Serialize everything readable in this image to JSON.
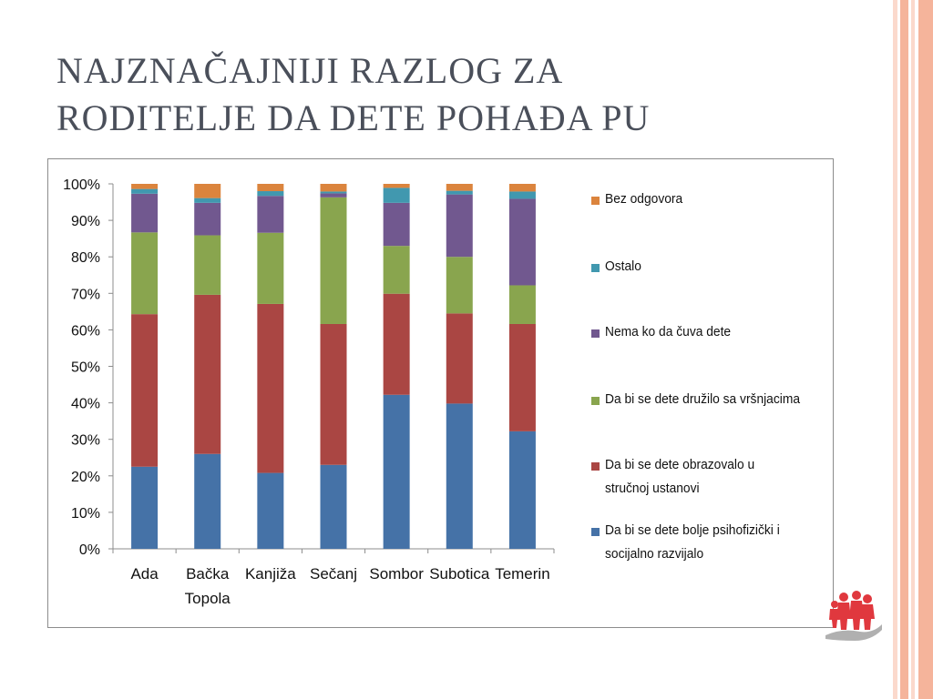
{
  "slide": {
    "title_line1": "NAJZNAČAJNIJI RAZLOG ZA",
    "title_line2": "RODITELJE DA DETE POHAĐA PU"
  },
  "colors": {
    "stripe_light": "#fbd9cc",
    "stripe_mid": "#f5b49b",
    "title": "#4a4f5a",
    "frame": "#8c8c8c",
    "logo": "#e0383e"
  },
  "logo": {
    "icon": "people-group-hand-logo"
  },
  "chart_data": {
    "type": "bar",
    "stacked": true,
    "percent": true,
    "categories": [
      "Ada",
      "Bačka\nTopola",
      "Kanjiža",
      "Sečanj",
      "Sombor",
      "Subotica",
      "Temerin"
    ],
    "ylim": [
      0,
      100
    ],
    "yticks": [
      "0%",
      "10%",
      "20%",
      "30%",
      "40%",
      "50%",
      "60%",
      "70%",
      "80%",
      "90%",
      "100%"
    ],
    "legend_position": "right",
    "series": [
      {
        "name": "Da bi se dete bolje psihofizički i socijalno razvijalo",
        "color": "#4572a7",
        "values": [
          22.5,
          26,
          20.8,
          23,
          42.2,
          39.8,
          32.2
        ]
      },
      {
        "name": "Da bi se dete obrazovalo u stručnoj ustanovi",
        "color": "#aa4643",
        "values": [
          41.8,
          43.6,
          46.3,
          38.6,
          27.7,
          24.7,
          29.4
        ]
      },
      {
        "name": "Da bi se dete družilo sa vršnjacima",
        "color": "#89a54e",
        "values": [
          22.4,
          16.3,
          19.5,
          34.7,
          13.1,
          15.5,
          10.6
        ]
      },
      {
        "name": "Nema ko da čuva dete",
        "color": "#71588f",
        "values": [
          10.6,
          8.9,
          10.1,
          1.1,
          11.8,
          17.1,
          23.7
        ]
      },
      {
        "name": "Ostalo",
        "color": "#4198af",
        "values": [
          1.3,
          1.3,
          1.3,
          0.5,
          4.1,
          1.0,
          2.0
        ]
      },
      {
        "name": "Bez odgovora",
        "color": "#db843d",
        "values": [
          1.4,
          3.9,
          2.0,
          2.1,
          1.1,
          1.9,
          2.1
        ]
      }
    ]
  }
}
